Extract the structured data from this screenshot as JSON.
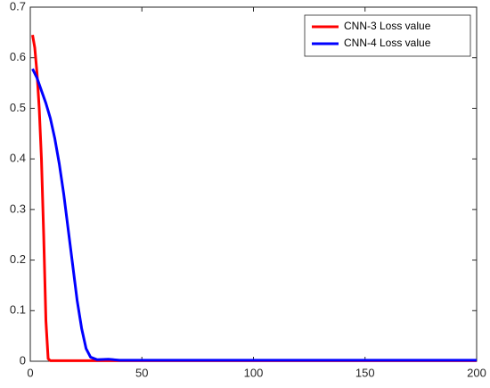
{
  "chart_data": {
    "type": "line",
    "xlim": [
      0,
      200
    ],
    "xticks": [
      0,
      50,
      100,
      150,
      200
    ],
    "ylim": [
      0,
      0.7
    ],
    "yticks": [
      0,
      0.1,
      0.2,
      0.3,
      0.4,
      0.5,
      0.6,
      0.7
    ],
    "legend": "top-right",
    "series": [
      {
        "name": "CNN-3 Loss value",
        "color": "#ff0000",
        "x": [
          1,
          2,
          3,
          4,
          5,
          6,
          7,
          8,
          9,
          200
        ],
        "values": [
          0.645,
          0.62,
          0.57,
          0.5,
          0.4,
          0.25,
          0.08,
          0.005,
          0.001,
          0.001
        ]
      },
      {
        "name": "CNN-4 Loss value",
        "color": "#0000ff",
        "x": [
          1,
          3,
          5,
          7,
          9,
          11,
          13,
          15,
          17,
          19,
          21,
          23,
          25,
          27,
          30,
          35,
          40,
          200
        ],
        "values": [
          0.578,
          0.56,
          0.535,
          0.51,
          0.48,
          0.44,
          0.39,
          0.33,
          0.26,
          0.19,
          0.12,
          0.065,
          0.025,
          0.008,
          0.003,
          0.004,
          0.002,
          0.002
        ]
      }
    ]
  }
}
